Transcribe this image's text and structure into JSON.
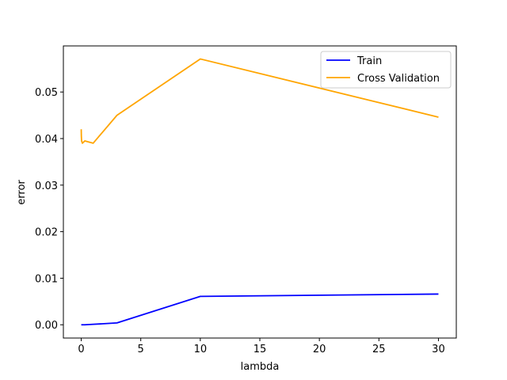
{
  "chart_data": {
    "type": "line",
    "title": "",
    "xlabel": "lambda",
    "ylabel": "error",
    "xlim": [
      -1.5,
      31.5
    ],
    "ylim": [
      -0.00285,
      0.0599
    ],
    "xticks": [
      0,
      5,
      10,
      15,
      20,
      25,
      30
    ],
    "xtick_labels": [
      "0",
      "5",
      "10",
      "15",
      "20",
      "25",
      "30"
    ],
    "yticks": [
      0.0,
      0.01,
      0.02,
      0.03,
      0.04,
      0.05
    ],
    "ytick_labels": [
      "0.00",
      "0.01",
      "0.02",
      "0.03",
      "0.04",
      "0.05"
    ],
    "grid": false,
    "legend_position": "top-right",
    "x": [
      0,
      0.001,
      0.003,
      0.01,
      0.03,
      0.1,
      0.3,
      1,
      3,
      10,
      30
    ],
    "series": [
      {
        "name": "Train",
        "color": "#0000ff",
        "values": [
          0.0,
          0.0,
          0.0,
          0.0,
          0.0,
          0.0,
          0.0,
          0.0001,
          0.0004,
          0.0061,
          0.0066
        ]
      },
      {
        "name": "Cross Validation",
        "color": "#ffa500",
        "values": [
          0.042,
          0.0418,
          0.0415,
          0.0405,
          0.0395,
          0.039,
          0.0395,
          0.039,
          0.045,
          0.0571,
          0.0446
        ]
      }
    ]
  }
}
